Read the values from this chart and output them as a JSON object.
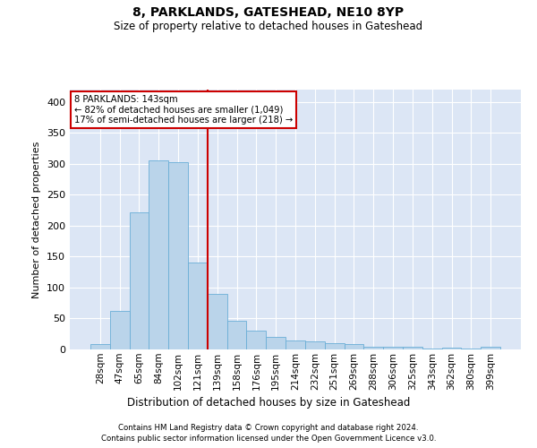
{
  "title": "8, PARKLANDS, GATESHEAD, NE10 8YP",
  "subtitle": "Size of property relative to detached houses in Gateshead",
  "xlabel": "Distribution of detached houses by size in Gateshead",
  "ylabel": "Number of detached properties",
  "bar_color": "#bad4ea",
  "bar_edge_color": "#6aaed6",
  "background_color": "#dce6f5",
  "grid_color": "#ffffff",
  "annotation_box_color": "#cc0000",
  "vline_color": "#cc0000",
  "vline_x_index": 6,
  "annotation_text_line1": "8 PARKLANDS: 143sqm",
  "annotation_text_line2": "← 82% of detached houses are smaller (1,049)",
  "annotation_text_line3": "17% of semi-detached houses are larger (218) →",
  "categories": [
    "28sqm",
    "47sqm",
    "65sqm",
    "84sqm",
    "102sqm",
    "121sqm",
    "139sqm",
    "158sqm",
    "176sqm",
    "195sqm",
    "214sqm",
    "232sqm",
    "251sqm",
    "269sqm",
    "288sqm",
    "306sqm",
    "325sqm",
    "343sqm",
    "362sqm",
    "380sqm",
    "399sqm"
  ],
  "values": [
    8,
    63,
    221,
    305,
    303,
    140,
    90,
    46,
    30,
    20,
    15,
    13,
    10,
    9,
    4,
    5,
    4,
    2,
    3,
    2,
    4
  ],
  "ylim": [
    0,
    420
  ],
  "yticks": [
    0,
    50,
    100,
    150,
    200,
    250,
    300,
    350,
    400
  ],
  "footer_line1": "Contains HM Land Registry data © Crown copyright and database right 2024.",
  "footer_line2": "Contains public sector information licensed under the Open Government Licence v3.0."
}
